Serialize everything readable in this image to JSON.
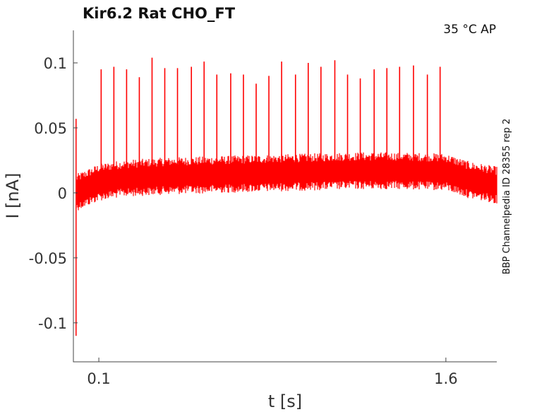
{
  "chart_data": {
    "type": "line",
    "title": "Kir6.2  Rat  CHO_FT",
    "annotation": "35 °C  AP",
    "side_note": "BBP Channelpedia ID 28355 rep 2",
    "xlabel": "t [s]",
    "ylabel": "I [nA]",
    "xlim": [
      -0.01,
      1.82
    ],
    "ylim": [
      -0.13,
      0.125
    ],
    "x_ticks": [
      0.1,
      1.6
    ],
    "x_tick_labels": [
      "0.1",
      "1.6"
    ],
    "y_ticks": [
      0.1,
      0.05,
      0,
      -0.05,
      -0.1
    ],
    "y_tick_labels": [
      "0.1",
      "0.05",
      "0",
      "-0.05",
      "-0.1"
    ],
    "grid": false,
    "series": [
      {
        "color": "#ff0000",
        "baseline": {
          "x": [
            0.0,
            0.1,
            0.2,
            0.4,
            0.6,
            0.8,
            1.0,
            1.2,
            1.4,
            1.6,
            1.7,
            1.82
          ],
          "y": [
            0.0,
            0.008,
            0.011,
            0.013,
            0.014,
            0.015,
            0.016,
            0.017,
            0.017,
            0.016,
            0.01,
            0.006
          ]
        },
        "noise_amplitude": 0.011,
        "initial_transient": {
          "x": 0.0,
          "min": -0.11,
          "max": 0.057
        },
        "spikes": {
          "x": [
            0.026,
            0.11,
            0.165,
            0.22,
            0.275,
            0.33,
            0.385,
            0.44,
            0.5,
            0.555,
            0.61,
            0.67,
            0.725,
            0.78,
            0.835,
            0.89,
            0.95,
            1.005,
            1.06,
            1.12,
            1.175,
            1.23,
            1.29,
            1.345,
            1.4,
            1.46,
            1.52,
            1.575
          ],
          "y": [
            0.0,
            0.095,
            0.097,
            0.095,
            0.089,
            0.104,
            0.096,
            0.096,
            0.097,
            0.101,
            0.091,
            0.092,
            0.091,
            0.084,
            0.09,
            0.101,
            0.091,
            0.1,
            0.097,
            0.102,
            0.091,
            0.088,
            0.095,
            0.096,
            0.097,
            0.098,
            0.091,
            0.097
          ]
        }
      }
    ]
  }
}
